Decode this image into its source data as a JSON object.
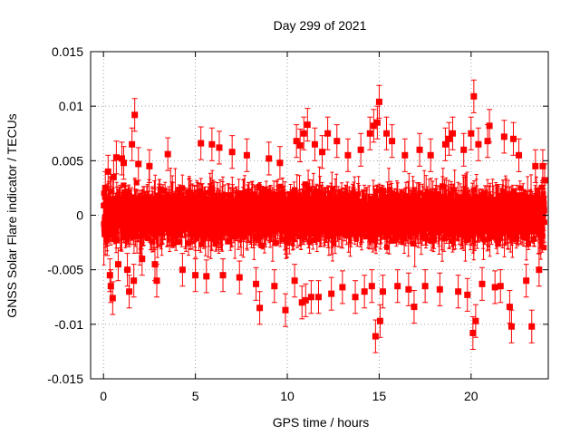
{
  "chart_data": {
    "type": "scatter",
    "title": "Day 299 of 2021",
    "xlabel": "GPS time / hours",
    "ylabel": "GNSS Solar Flare indicator / TECUs",
    "xlim": [
      -0.7,
      24.2
    ],
    "ylim": [
      -0.015,
      0.015
    ],
    "x_ticks": [
      0,
      5,
      10,
      15,
      20
    ],
    "x_tick_labels": [
      "0",
      "5",
      "10",
      "15",
      "20"
    ],
    "y_ticks": [
      -0.015,
      -0.01,
      -0.005,
      0,
      0.005,
      0.01,
      0.015
    ],
    "y_tick_labels": [
      "-0.015",
      "-0.01",
      "-0.005",
      "0",
      "0.005",
      "0.01",
      "0.015"
    ],
    "grid": true,
    "legend": "none",
    "series": [
      {
        "color": "#ff0000",
        "marker": "square",
        "error_bars": true,
        "error_bar_typical": 0.0015,
        "points": [
          {
            "x": 0.1,
            "y": 0.0025
          },
          {
            "x": 0.2,
            "y": -0.0022
          },
          {
            "x": 0.25,
            "y": 0.004
          },
          {
            "x": 0.35,
            "y": -0.0055
          },
          {
            "x": 0.4,
            "y": -0.0065
          },
          {
            "x": 0.5,
            "y": -0.0076
          },
          {
            "x": 0.55,
            "y": 0.0035
          },
          {
            "x": 0.7,
            "y": 0.0053
          },
          {
            "x": 0.8,
            "y": -0.0045
          },
          {
            "x": 1.0,
            "y": 0.0052
          },
          {
            "x": 1.1,
            "y": 0.0048
          },
          {
            "x": 1.3,
            "y": -0.005
          },
          {
            "x": 1.4,
            "y": -0.007
          },
          {
            "x": 1.55,
            "y": 0.0065
          },
          {
            "x": 1.65,
            "y": -0.006
          },
          {
            "x": 1.7,
            "y": 0.0092
          },
          {
            "x": 1.9,
            "y": 0.0047
          },
          {
            "x": 2.1,
            "y": -0.004
          },
          {
            "x": 2.5,
            "y": 0.0045
          },
          {
            "x": 2.8,
            "y": -0.0045
          },
          {
            "x": 2.9,
            "y": -0.006
          },
          {
            "x": 3.5,
            "y": 0.0056
          },
          {
            "x": 4.3,
            "y": -0.005
          },
          {
            "x": 5.0,
            "y": -0.0055
          },
          {
            "x": 5.3,
            "y": 0.0066
          },
          {
            "x": 5.6,
            "y": -0.0056
          },
          {
            "x": 5.9,
            "y": 0.0065
          },
          {
            "x": 6.3,
            "y": 0.0062
          },
          {
            "x": 6.5,
            "y": -0.0055
          },
          {
            "x": 7.0,
            "y": 0.0058
          },
          {
            "x": 7.4,
            "y": -0.0057
          },
          {
            "x": 7.8,
            "y": 0.0055
          },
          {
            "x": 8.3,
            "y": -0.0063
          },
          {
            "x": 8.5,
            "y": -0.0085
          },
          {
            "x": 9.0,
            "y": 0.0052
          },
          {
            "x": 9.3,
            "y": -0.0065
          },
          {
            "x": 9.6,
            "y": 0.0048
          },
          {
            "x": 9.9,
            "y": -0.0087
          },
          {
            "x": 10.4,
            "y": -0.006
          },
          {
            "x": 10.5,
            "y": 0.0068
          },
          {
            "x": 10.7,
            "y": 0.0064
          },
          {
            "x": 10.8,
            "y": -0.008
          },
          {
            "x": 10.9,
            "y": 0.0075
          },
          {
            "x": 11.0,
            "y": -0.0078
          },
          {
            "x": 11.1,
            "y": 0.0083
          },
          {
            "x": 11.3,
            "y": -0.0075
          },
          {
            "x": 11.5,
            "y": 0.0065
          },
          {
            "x": 11.7,
            "y": -0.0075
          },
          {
            "x": 11.9,
            "y": 0.0058
          },
          {
            "x": 12.2,
            "y": 0.0075
          },
          {
            "x": 12.4,
            "y": -0.0072
          },
          {
            "x": 12.7,
            "y": 0.0068
          },
          {
            "x": 13.0,
            "y": -0.0066
          },
          {
            "x": 13.3,
            "y": 0.0055
          },
          {
            "x": 13.7,
            "y": -0.0075
          },
          {
            "x": 14.0,
            "y": 0.006
          },
          {
            "x": 14.2,
            "y": -0.007
          },
          {
            "x": 14.5,
            "y": 0.0075
          },
          {
            "x": 14.6,
            "y": -0.0065
          },
          {
            "x": 14.7,
            "y": 0.0082
          },
          {
            "x": 14.8,
            "y": -0.0111
          },
          {
            "x": 14.9,
            "y": 0.0085
          },
          {
            "x": 15.0,
            "y": 0.0104
          },
          {
            "x": 15.05,
            "y": -0.0097
          },
          {
            "x": 15.2,
            "y": -0.007
          },
          {
            "x": 15.4,
            "y": 0.0075
          },
          {
            "x": 15.7,
            "y": 0.0068
          },
          {
            "x": 16.0,
            "y": -0.0065
          },
          {
            "x": 16.4,
            "y": 0.0055
          },
          {
            "x": 16.6,
            "y": -0.0068
          },
          {
            "x": 16.9,
            "y": -0.0084
          },
          {
            "x": 17.2,
            "y": 0.006
          },
          {
            "x": 17.5,
            "y": -0.0065
          },
          {
            "x": 17.8,
            "y": 0.0055
          },
          {
            "x": 18.3,
            "y": -0.0068
          },
          {
            "x": 18.6,
            "y": 0.0065
          },
          {
            "x": 18.8,
            "y": 0.007
          },
          {
            "x": 19.0,
            "y": 0.0075
          },
          {
            "x": 19.3,
            "y": -0.007
          },
          {
            "x": 19.6,
            "y": 0.006
          },
          {
            "x": 19.8,
            "y": -0.0073
          },
          {
            "x": 20.0,
            "y": 0.0075
          },
          {
            "x": 20.1,
            "y": -0.0108
          },
          {
            "x": 20.15,
            "y": 0.0109
          },
          {
            "x": 20.25,
            "y": -0.0097
          },
          {
            "x": 20.4,
            "y": 0.0065
          },
          {
            "x": 20.6,
            "y": -0.0063
          },
          {
            "x": 20.9,
            "y": 0.0068
          },
          {
            "x": 21.0,
            "y": 0.0082
          },
          {
            "x": 21.3,
            "y": -0.0066
          },
          {
            "x": 21.6,
            "y": -0.0065
          },
          {
            "x": 21.8,
            "y": 0.0072
          },
          {
            "x": 22.1,
            "y": -0.0084
          },
          {
            "x": 22.2,
            "y": -0.0102
          },
          {
            "x": 22.3,
            "y": 0.007
          },
          {
            "x": 22.6,
            "y": 0.0055
          },
          {
            "x": 23.0,
            "y": -0.006
          },
          {
            "x": 23.3,
            "y": -0.0102
          },
          {
            "x": 23.5,
            "y": 0.0045
          },
          {
            "x": 23.7,
            "y": -0.005
          },
          {
            "x": 23.9,
            "y": 0.0045
          },
          {
            "x": 24.0,
            "y": 0.0032
          }
        ]
      }
    ]
  }
}
